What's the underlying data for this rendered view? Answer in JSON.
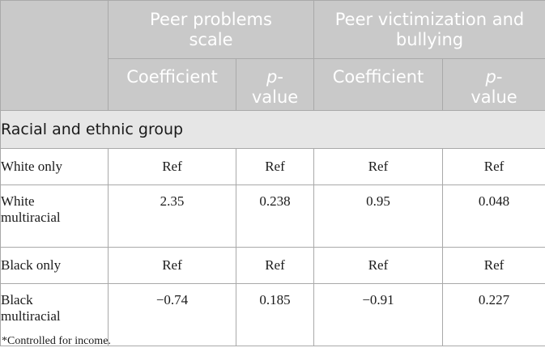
{
  "table": {
    "col_groups": [
      "Peer problems scale",
      "Peer victimization and bullying"
    ],
    "sub_headers": {
      "coefficient": "Coefficient",
      "p_italic": "p",
      "p_rest": "-",
      "p_value": "value"
    },
    "section_label": "Racial and ethnic group",
    "rows": [
      {
        "label_line1": "White only",
        "label_line2": "",
        "c1": "Ref",
        "p1": "Ref",
        "c2": "Ref",
        "p2": "Ref"
      },
      {
        "label_line1": "White",
        "label_line2": "multiracial",
        "c1": "2.35",
        "p1": "0.238",
        "c2": "0.95",
        "p2": "0.048"
      },
      {
        "label_line1": "Black only",
        "label_line2": "",
        "c1": "Ref",
        "p1": "Ref",
        "c2": "Ref",
        "p2": "Ref"
      },
      {
        "label_line1": "Black",
        "label_line2": "multiracial",
        "c1": "−0.74",
        "p1": "0.185",
        "c2": "−0.91",
        "p2": "0.227"
      }
    ]
  },
  "footnote": "*Controlled for income."
}
